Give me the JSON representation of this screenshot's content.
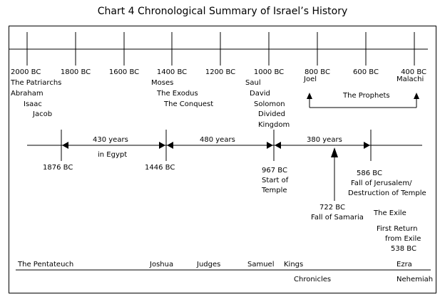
{
  "title": "Chart 4  Chronological Summary of Israel’s History",
  "scale": {
    "labels": [
      "2000 BC",
      "1800 BC",
      "1600 BC",
      "1400 BC",
      "1200 BC",
      "1000 BC",
      "800 BC",
      "600 BC",
      "400 BC"
    ]
  },
  "top_groups": {
    "patriarchs": [
      "The Patriarchs",
      "Abraham",
      "Isaac",
      "Jacob"
    ],
    "moses": [
      "Moses",
      "The Exodus",
      "The Conquest"
    ],
    "monarchy": [
      "Saul",
      "David",
      "Solomon",
      "Divided",
      "Kingdom"
    ],
    "joel": "Joel",
    "malachi": "Malachi",
    "prophets": "The Prophets"
  },
  "timeline": {
    "segments": {
      "egypt_years": "430 years",
      "egypt_label": "in Egypt",
      "judges_years": "480 years",
      "kingdom_years": "380 years"
    },
    "dates": {
      "d1876": "1876 BC",
      "d1446": "1446 BC",
      "d967": "967 BC",
      "d967_caption": [
        "Start of",
        "Temple"
      ],
      "d586": "586 BC",
      "d586_caption": [
        "Fall of Jerusalem/",
        "Destruction of Temple"
      ],
      "d722": "722 BC",
      "d722_caption": "Fall of Samaria",
      "exile": "The Exile",
      "return": [
        "First Return",
        "from Exile",
        "538 BC"
      ]
    }
  },
  "books": [
    "The Pentateuch",
    "Joshua",
    "Judges",
    "Samuel",
    "Kings",
    "Chronicles",
    "Ezra",
    "Nehemiah"
  ]
}
